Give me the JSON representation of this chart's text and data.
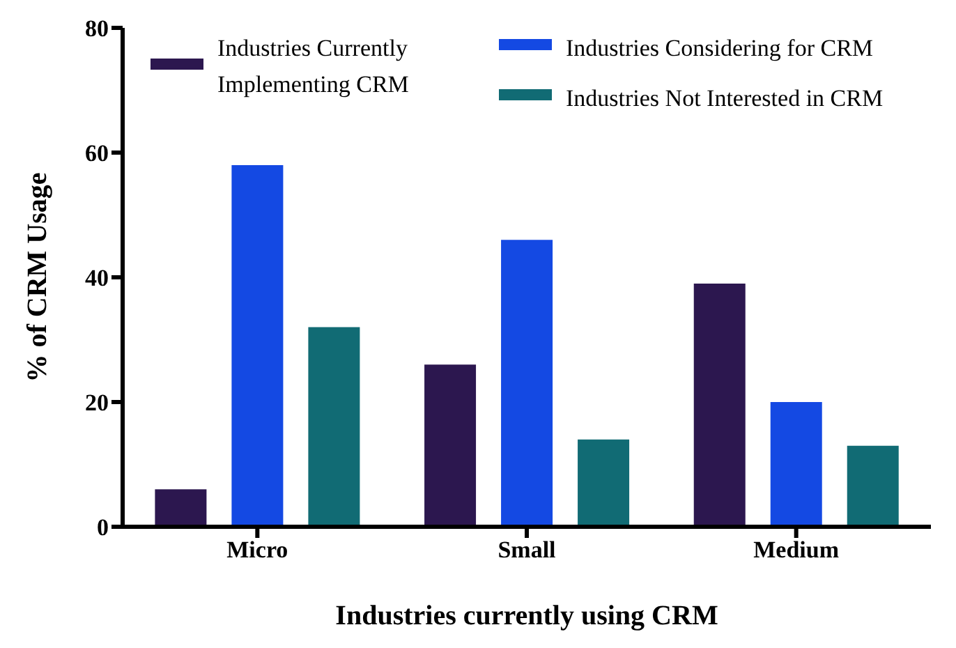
{
  "chart_data": {
    "type": "bar",
    "xlabel": "Industries currently using CRM",
    "ylabel": "% of CRM Usage",
    "categories": [
      "Micro",
      "Small",
      "Medium"
    ],
    "series": [
      {
        "name": "Industries Currently Implementing CRM",
        "color": "#2c174f",
        "values": [
          6,
          26,
          39
        ]
      },
      {
        "name": "Industries Considering for CRM",
        "color": "#1449e3",
        "values": [
          58,
          46,
          20
        ]
      },
      {
        "name": "Industries Not Interested in CRM",
        "color": "#116b74",
        "values": [
          32,
          14,
          13
        ]
      }
    ],
    "ylim": [
      0,
      80
    ],
    "yticks": [
      0,
      20,
      40,
      60,
      80
    ],
    "grid": false,
    "legend": "top"
  }
}
